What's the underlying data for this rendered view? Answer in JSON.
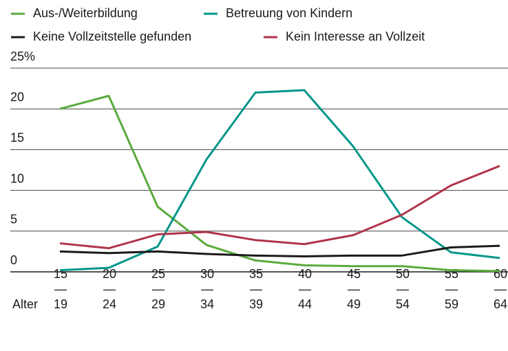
{
  "chart_data": {
    "type": "line",
    "x_label": "Alter",
    "categories": [
      [
        "15",
        "—",
        "19"
      ],
      [
        "20",
        "—",
        "24"
      ],
      [
        "25",
        "—",
        "29"
      ],
      [
        "30",
        "—",
        "34"
      ],
      [
        "35",
        "—",
        "39"
      ],
      [
        "40",
        "—",
        "44"
      ],
      [
        "45",
        "—",
        "49"
      ],
      [
        "50",
        "—",
        "54"
      ],
      [
        "55",
        "—",
        "59"
      ],
      [
        "60",
        "—",
        "64"
      ]
    ],
    "series": [
      {
        "name": "Aus-/Weiterbildung",
        "color": "#5aaa3c",
        "values": [
          20.0,
          21.6,
          8.0,
          3.3,
          1.4,
          0.8,
          0.7,
          0.7,
          0.2,
          0.1
        ]
      },
      {
        "name": "Betreuung von Kindern",
        "color": "#00968a",
        "values": [
          0.2,
          0.5,
          3.1,
          13.8,
          22.0,
          22.3,
          15.4,
          6.7,
          2.4,
          1.7
        ]
      },
      {
        "name": "Keine Vollzeitstelle gefunden",
        "color": "#1a1a1a",
        "values": [
          2.5,
          2.3,
          2.5,
          2.2,
          2.0,
          1.9,
          2.0,
          2.0,
          3.0,
          3.2
        ]
      },
      {
        "name": "Kein Interesse an Vollzeit",
        "color": "#b0344a",
        "values": [
          3.5,
          2.9,
          4.6,
          4.9,
          3.9,
          3.4,
          4.5,
          7.0,
          10.6,
          13.0
        ]
      }
    ],
    "ylim": [
      0,
      25
    ],
    "yticks": [
      0,
      5,
      10,
      15,
      20,
      {
        "value": 25,
        "label": "25%"
      }
    ],
    "grid": true
  }
}
